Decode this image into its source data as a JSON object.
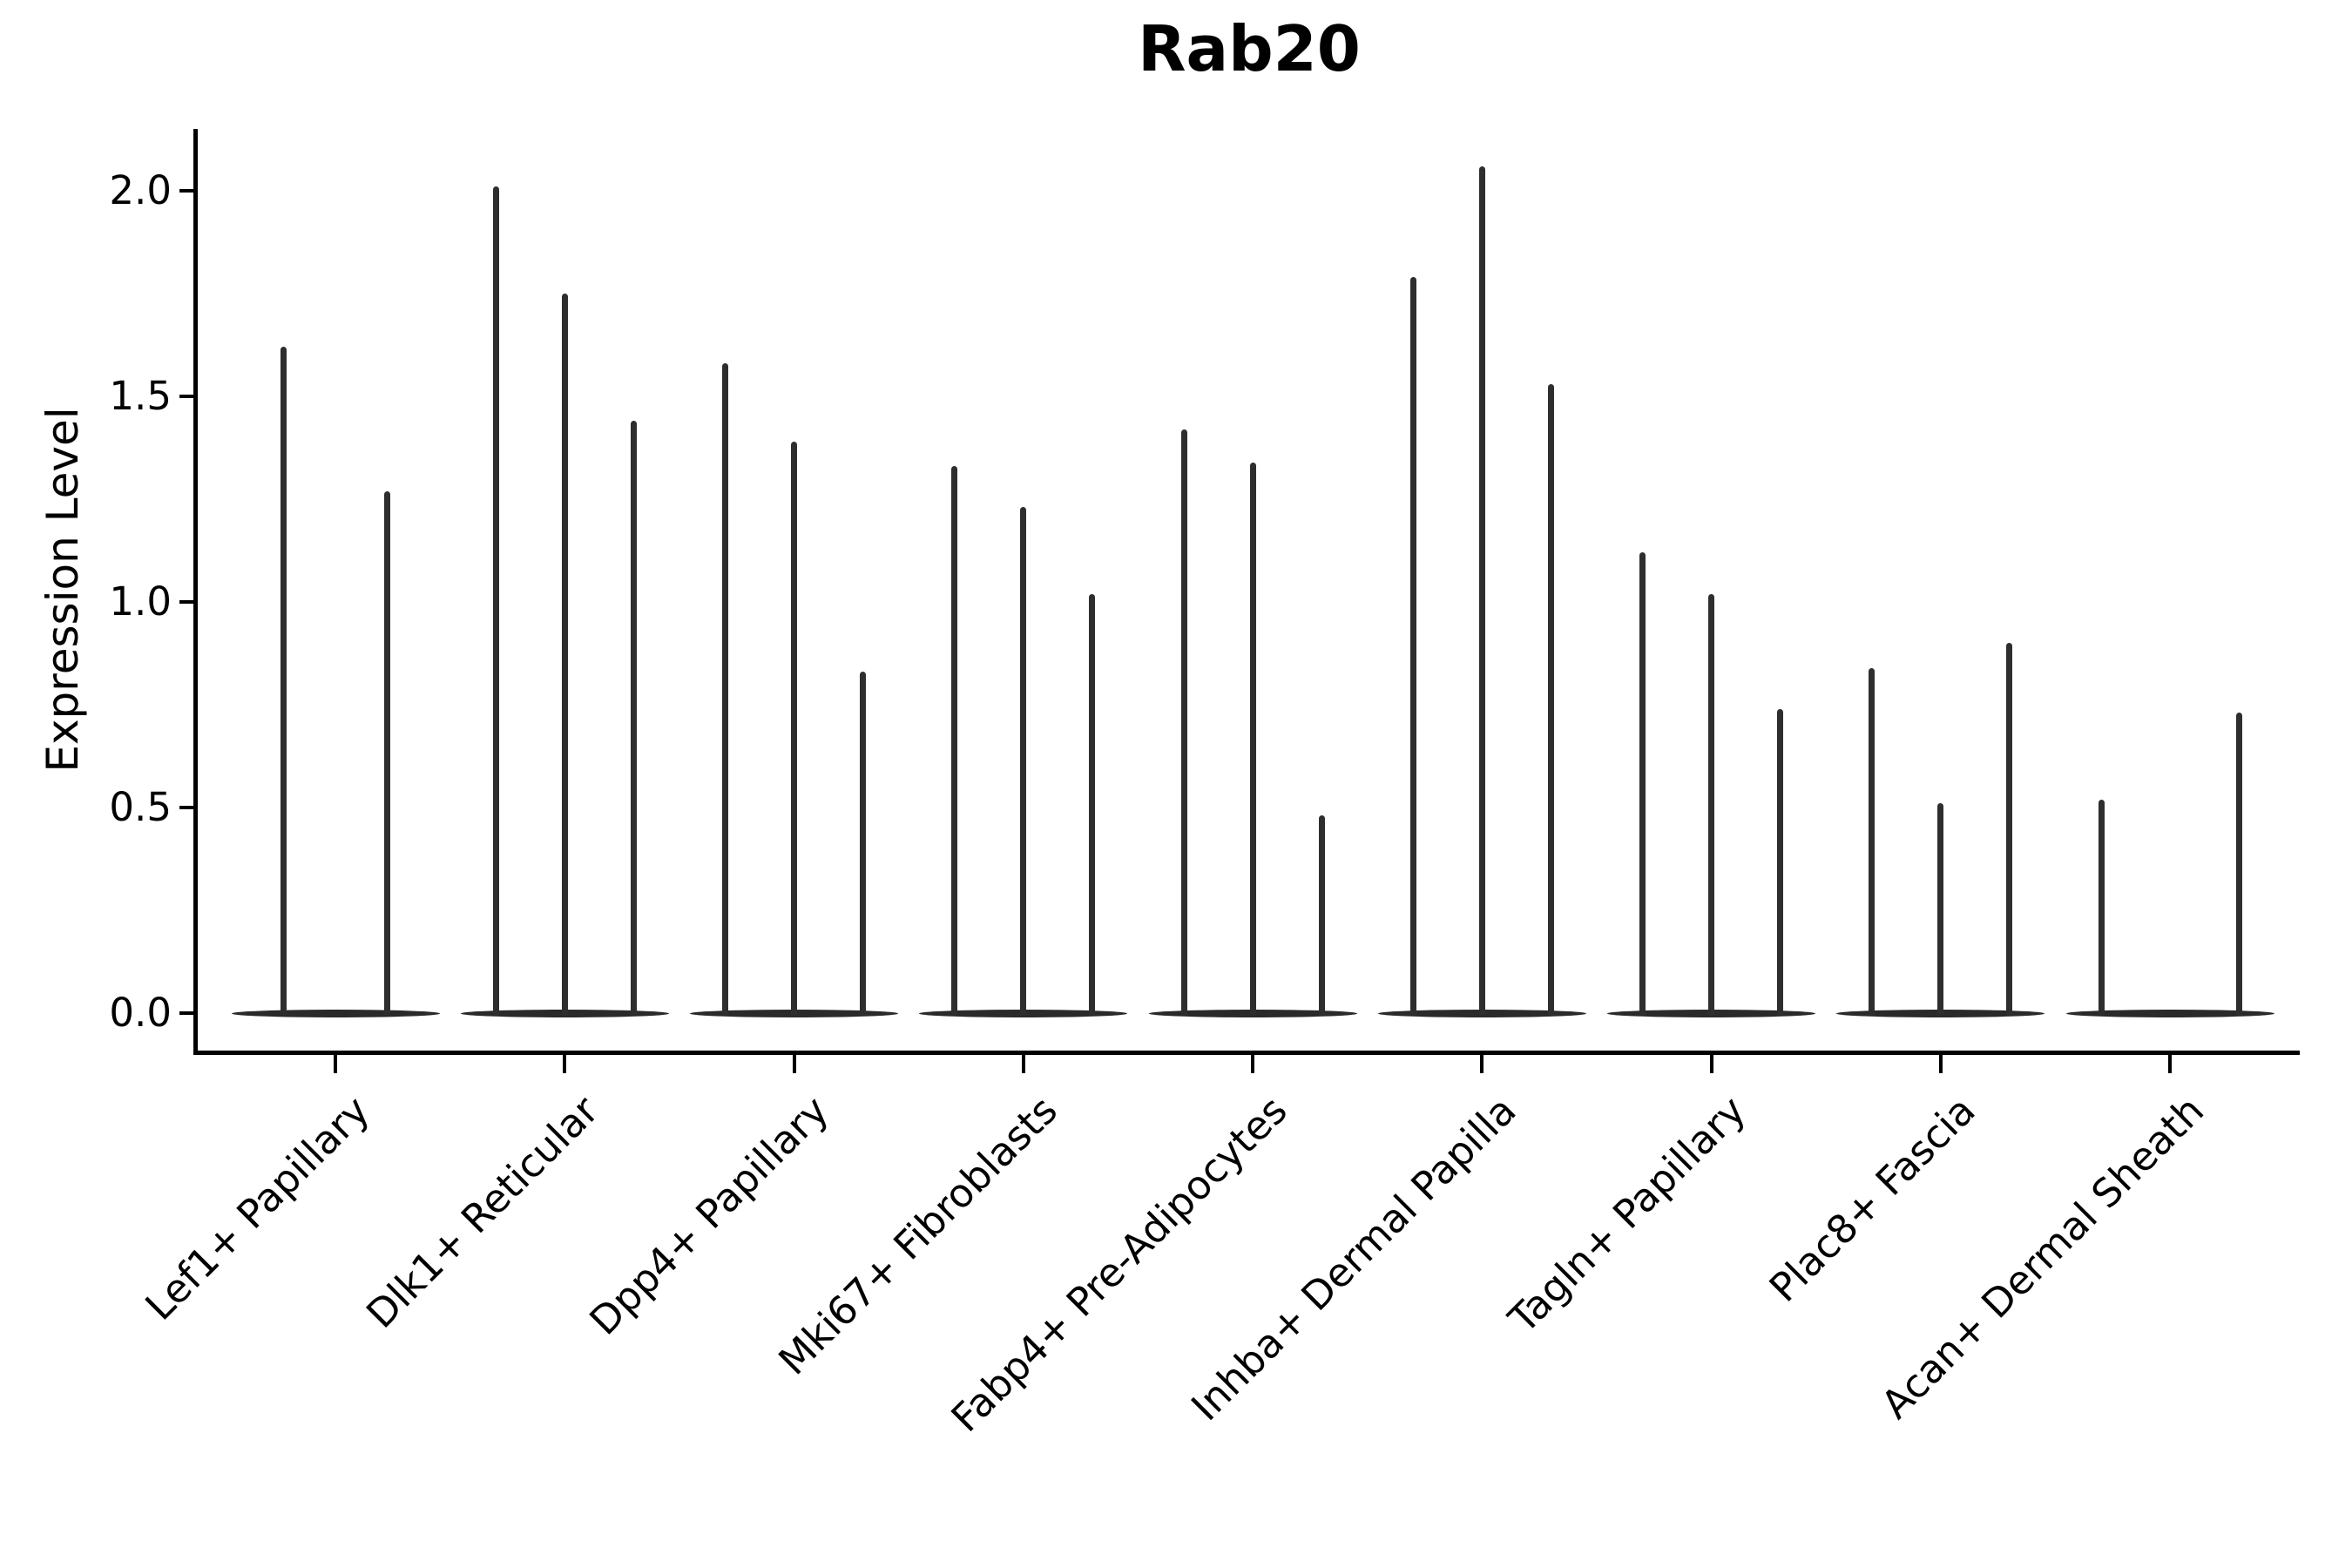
{
  "page": {
    "background": "#ffffff"
  },
  "chart_data": {
    "type": "violin",
    "title": "Rab20",
    "xlabel": "",
    "ylabel": "Expression Level",
    "yticks": [
      "0.0",
      "0.5",
      "1.0",
      "1.5",
      "2.0"
    ],
    "ytick_values": [
      0.0,
      0.5,
      1.0,
      1.5,
      2.0
    ],
    "ylim": [
      -0.1,
      2.15
    ],
    "grid": false,
    "legend": "none",
    "shape_note": "each violin is a needle: density mass at 0 with a thin spike reaching its max expression value; null = fully flat violin at 0",
    "colors": {
      "violin": "#2e2e2e",
      "axis": "#000000",
      "text": "#000000",
      "background": "#ffffff"
    },
    "categories": [
      "Lef1+ Papillary",
      "Dlk1+ Reticular",
      "Dpp4+ Papillary",
      "Mki67+ Fibroblasts",
      "Fabp4+ Pre-Adipocytes",
      "Inhba+ Dermal Papilla",
      "Tagln+ Papillary",
      "Plac8+ Fascia",
      "Acan+ Dermal Sheath"
    ],
    "groups": [
      {
        "label": "Lef1+ Papillary",
        "spike_maxima": [
          1.62,
          1.27
        ]
      },
      {
        "label": "Dlk1+ Reticular",
        "spike_maxima": [
          2.01,
          1.75,
          1.44
        ]
      },
      {
        "label": "Dpp4+ Papillary",
        "spike_maxima": [
          1.58,
          1.39,
          0.83
        ]
      },
      {
        "label": "Mki67+ Fibroblasts",
        "spike_maxima": [
          1.33,
          1.23,
          1.02
        ]
      },
      {
        "label": "Fabp4+ Pre-Adipocytes",
        "spike_maxima": [
          1.42,
          1.34,
          0.48
        ]
      },
      {
        "label": "Inhba+ Dermal Papilla",
        "spike_maxima": [
          1.79,
          2.06,
          1.53
        ]
      },
      {
        "label": "Tagln+ Papillary",
        "spike_maxima": [
          1.12,
          1.02,
          0.74
        ]
      },
      {
        "label": "Plac8+ Fascia",
        "spike_maxima": [
          0.84,
          0.51,
          0.9
        ]
      },
      {
        "label": "Acan+ Dermal Sheath",
        "spike_maxima": [
          0.52,
          null,
          0.73
        ]
      }
    ]
  }
}
